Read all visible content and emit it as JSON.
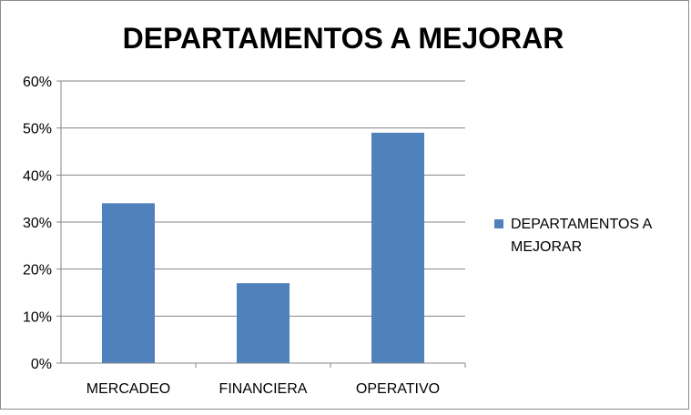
{
  "chart_data": {
    "type": "bar",
    "title": "DEPARTAMENTOS A MEJORAR",
    "categories": [
      "MERCADEO",
      "FINANCIERA",
      "OPERATIVO"
    ],
    "series": [
      {
        "name": "DEPARTAMENTOS A MEJORAR",
        "values": [
          34,
          17,
          49
        ],
        "color": "#4f81bd"
      }
    ],
    "y_ticks": [
      "0%",
      "10%",
      "20%",
      "30%",
      "40%",
      "50%",
      "60%"
    ],
    "ylim": [
      0,
      60
    ],
    "grid": true,
    "legend_position": "right",
    "legend_lines": [
      "DEPARTAMENTOS A",
      "MEJORAR"
    ]
  }
}
